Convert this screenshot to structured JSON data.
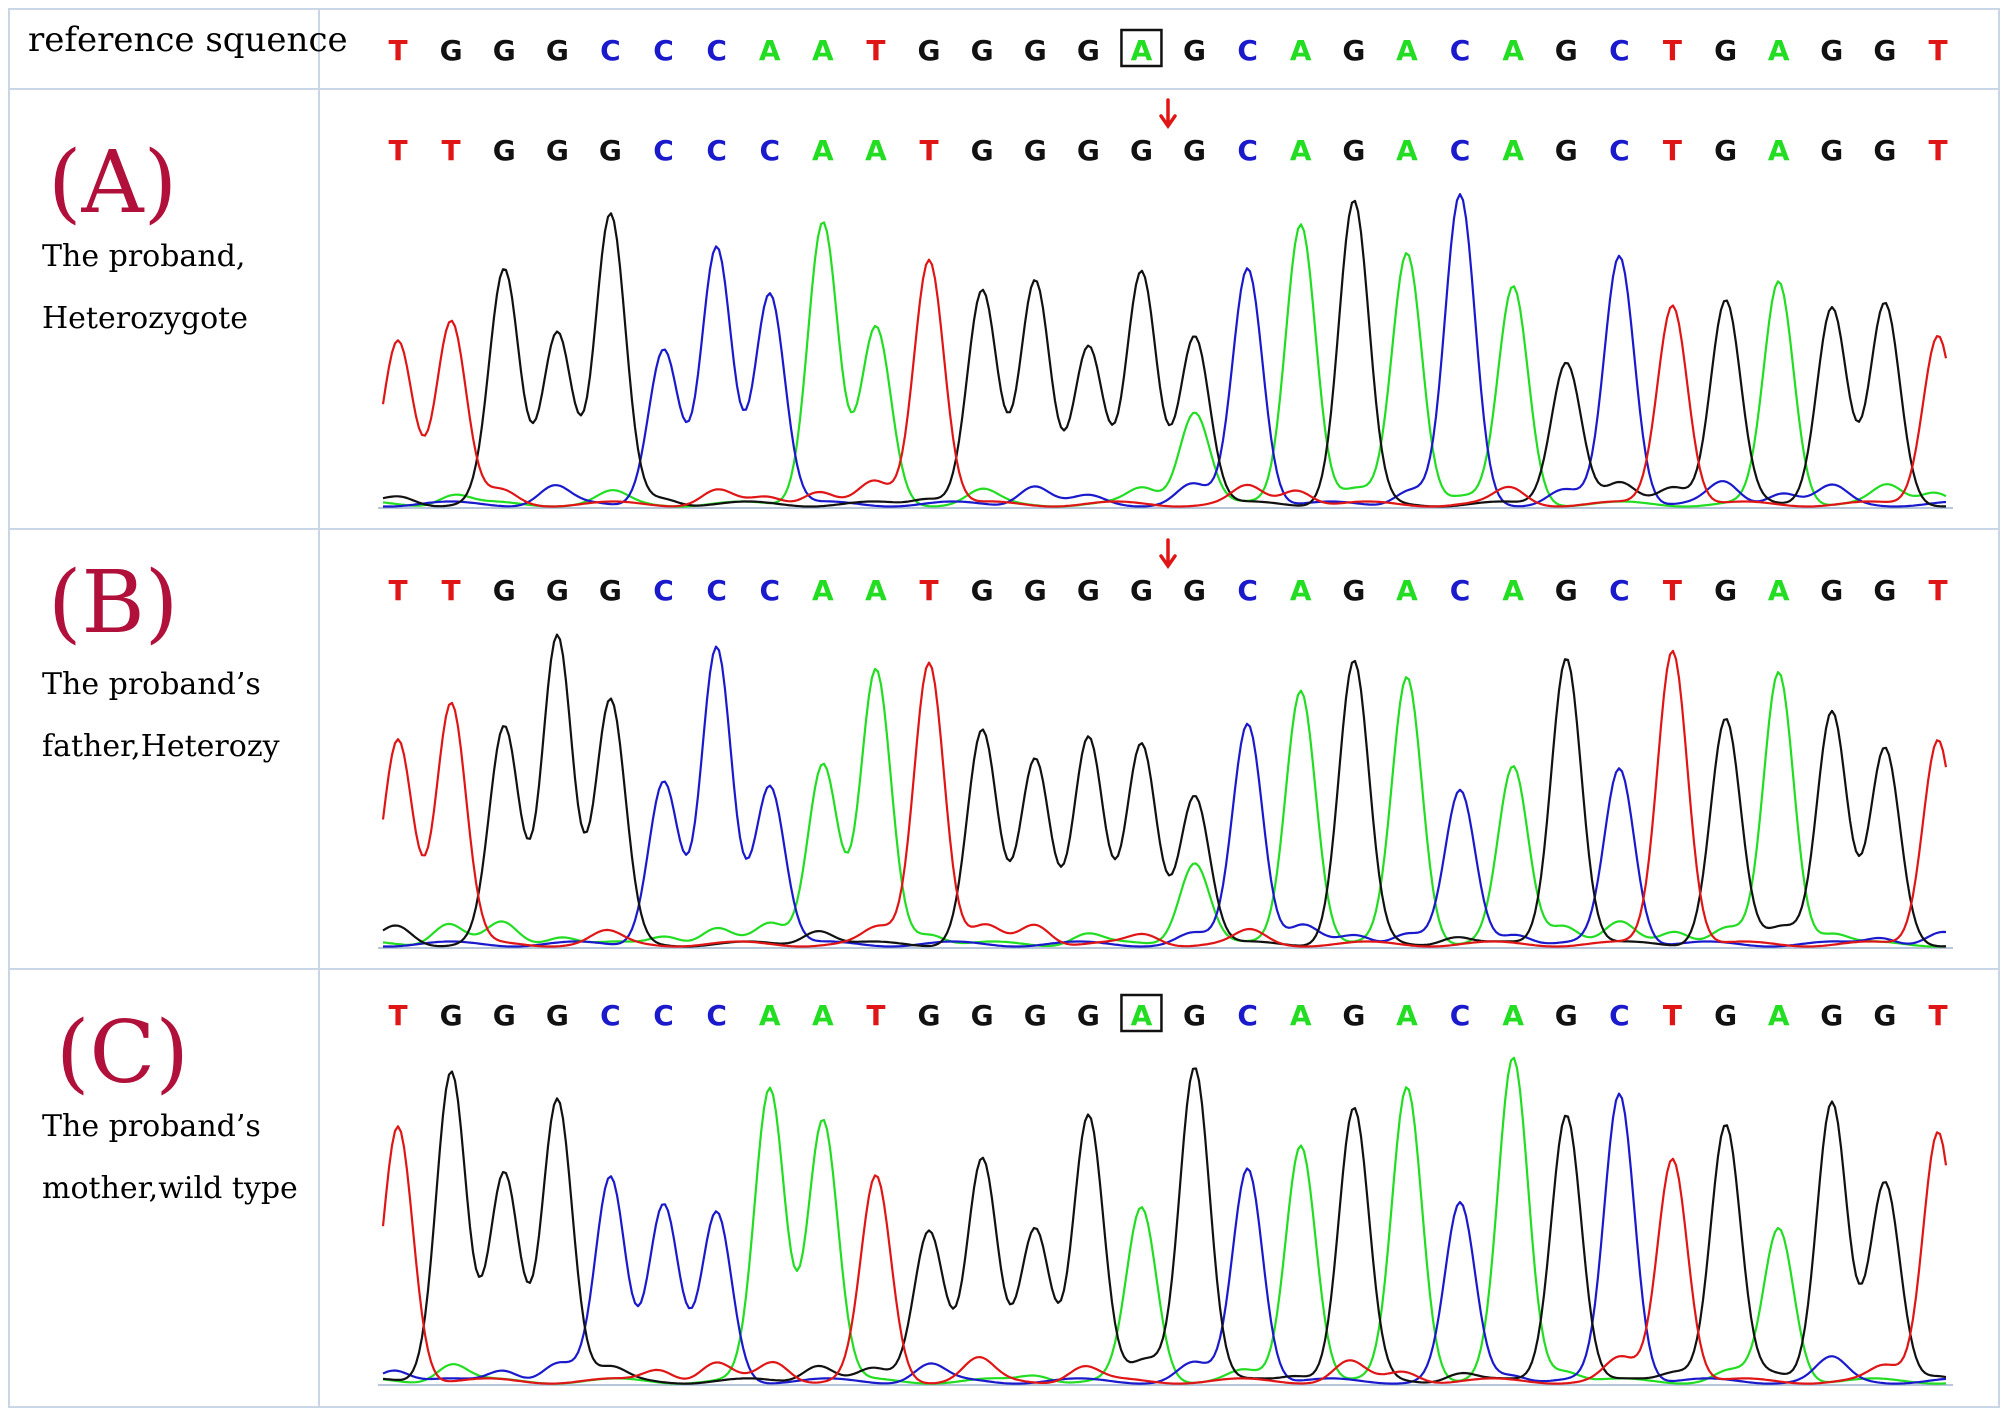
{
  "reference": {
    "label": "reference squence",
    "sequence": "TGGGCCCAATGGGGAGCAGACAGCTGAGGT",
    "boxed_index": 14
  },
  "panels": [
    {
      "id": "A",
      "letter": "(A)",
      "desc_line1": "The proband,",
      "desc_line2": "Heterozygote",
      "sequence": "TTGGGCCCAATGGGGGCAGACAGCTGAGGT",
      "arrow_index": 15
    },
    {
      "id": "B",
      "letter": "(B)",
      "desc_line1": "The proband’s",
      "desc_line2": "father,Heterozy",
      "sequence": "TTGGGCCCAATGGGGGCAGACAGCTGAGGT",
      "arrow_index": 15
    },
    {
      "id": "C",
      "letter": "(C)",
      "desc_line1": "The proband’s",
      "desc_line2": "mother,wild type",
      "sequence": "TGGGCCCAATGGGGAGCAGACAGCTGAGGT",
      "boxed_index": 14
    }
  ],
  "base_colors": {
    "A": "#22dd22",
    "C": "#1a1acc",
    "G": "#111111",
    "T": "#e01515"
  },
  "arrow_color": "#e01515"
}
